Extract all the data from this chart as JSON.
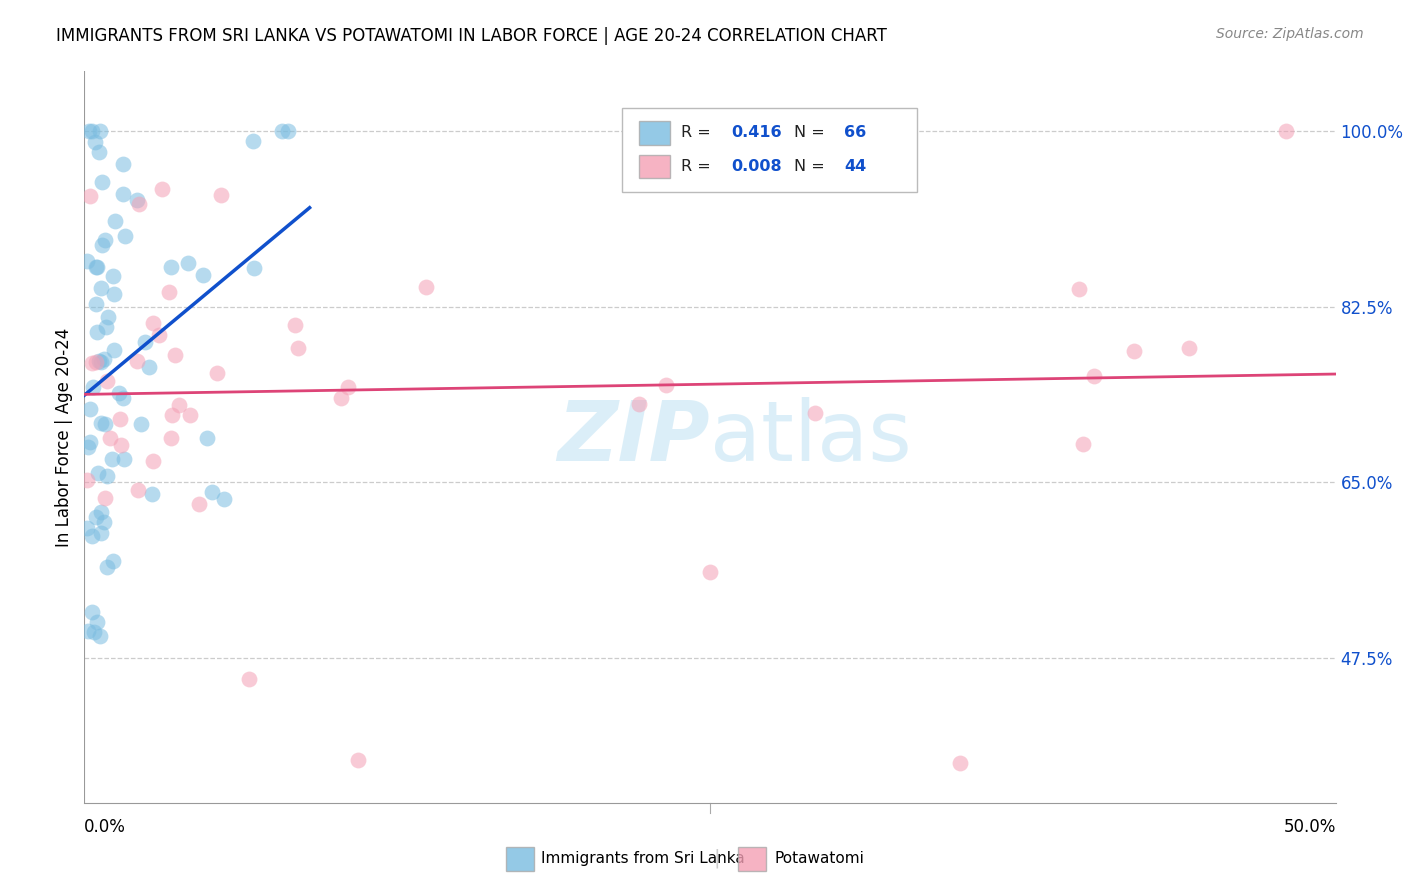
{
  "title": "IMMIGRANTS FROM SRI LANKA VS POTAWATOMI IN LABOR FORCE | AGE 20-24 CORRELATION CHART",
  "source": "Source: ZipAtlas.com",
  "ylabel": "In Labor Force | Age 20-24",
  "xlim": [
    0.0,
    0.5
  ],
  "ylim": [
    0.33,
    1.06
  ],
  "ytick_positions": [
    0.475,
    0.65,
    0.825,
    1.0
  ],
  "ytick_labels": [
    "47.5%",
    "65.0%",
    "82.5%",
    "100.0%"
  ],
  "blue_color": "#7abce0",
  "pink_color": "#f4a0b5",
  "trend_blue_color": "#1050cc",
  "trend_pink_color": "#dd4477",
  "legend_label1": "Immigrants from Sri Lanka",
  "legend_label2": "Potawatomi",
  "R1": "0.416",
  "N1": "66",
  "R2": "0.008",
  "N2": "44",
  "watermark_color": "#d8edf8",
  "axis_tick_color": "#1050cc",
  "source_color": "#888888"
}
